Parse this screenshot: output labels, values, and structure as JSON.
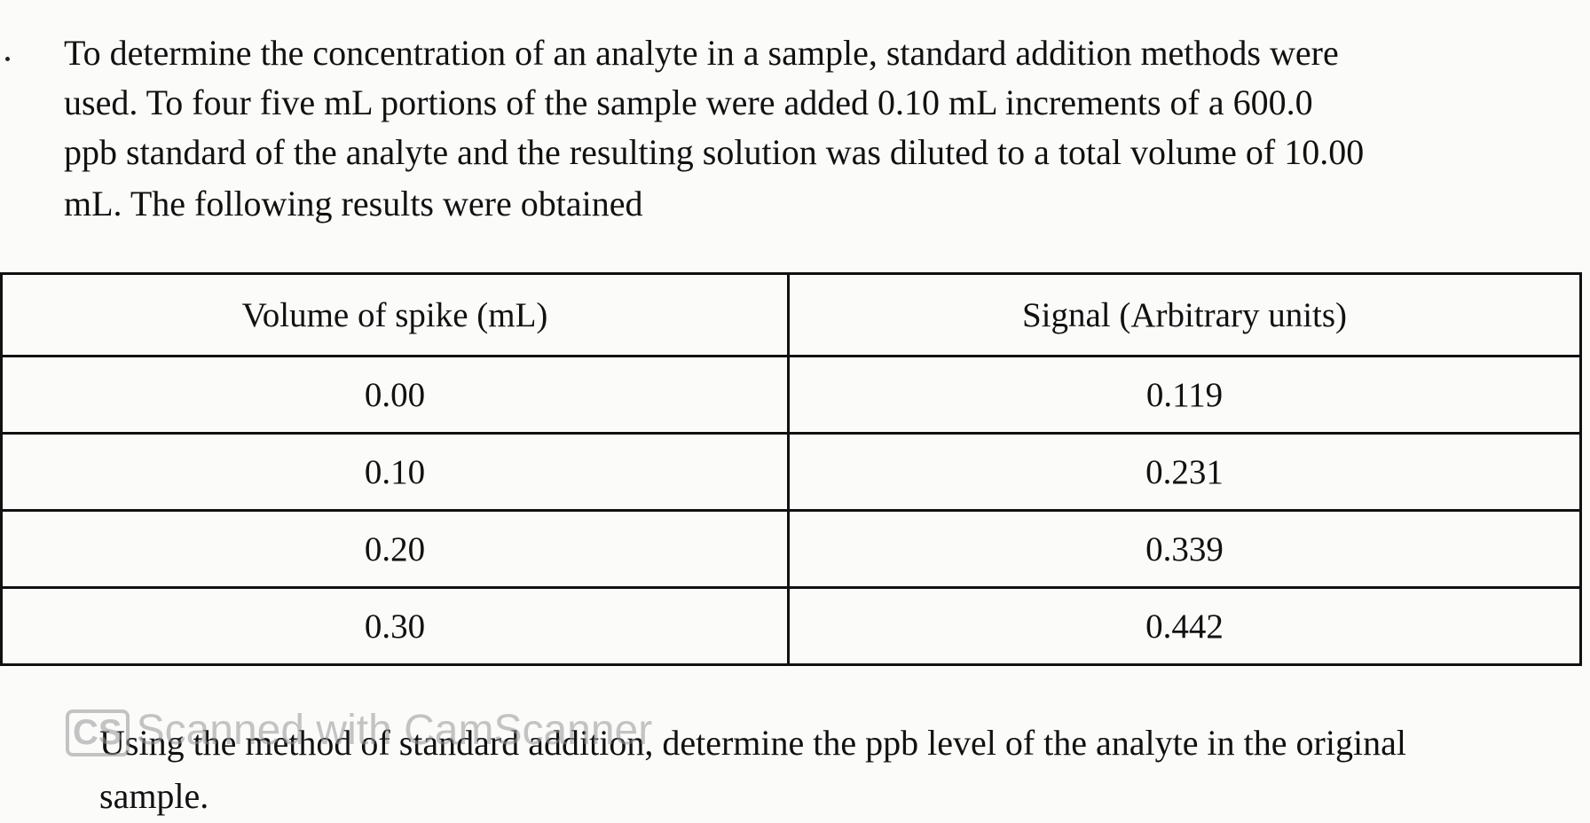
{
  "problem": {
    "intro_lines": [
      "To determine the concentration of an analyte in a sample, standard addition methods were",
      "used.  To four five mL portions of the sample were added 0.10 mL increments of a 600.0",
      "ppb standard of the analyte and the resulting solution was diluted to a total volume of 10.00",
      "mL.  The following results were obtained"
    ],
    "table": {
      "header": [
        "Volume of spike (mL)",
        "Signal (Arbitrary units)"
      ],
      "rows": [
        [
          "0.00",
          "0.119"
        ],
        [
          "0.10",
          "0.231"
        ],
        [
          "0.20",
          "0.339"
        ],
        [
          "0.30",
          "0.442"
        ]
      ]
    },
    "question_lines": [
      "Using the method of standard addition, determine the ppb level of the analyte in the original",
      "sample."
    ],
    "watermark": {
      "logo": "CS",
      "text": "Scanned with CamScanner"
    }
  }
}
